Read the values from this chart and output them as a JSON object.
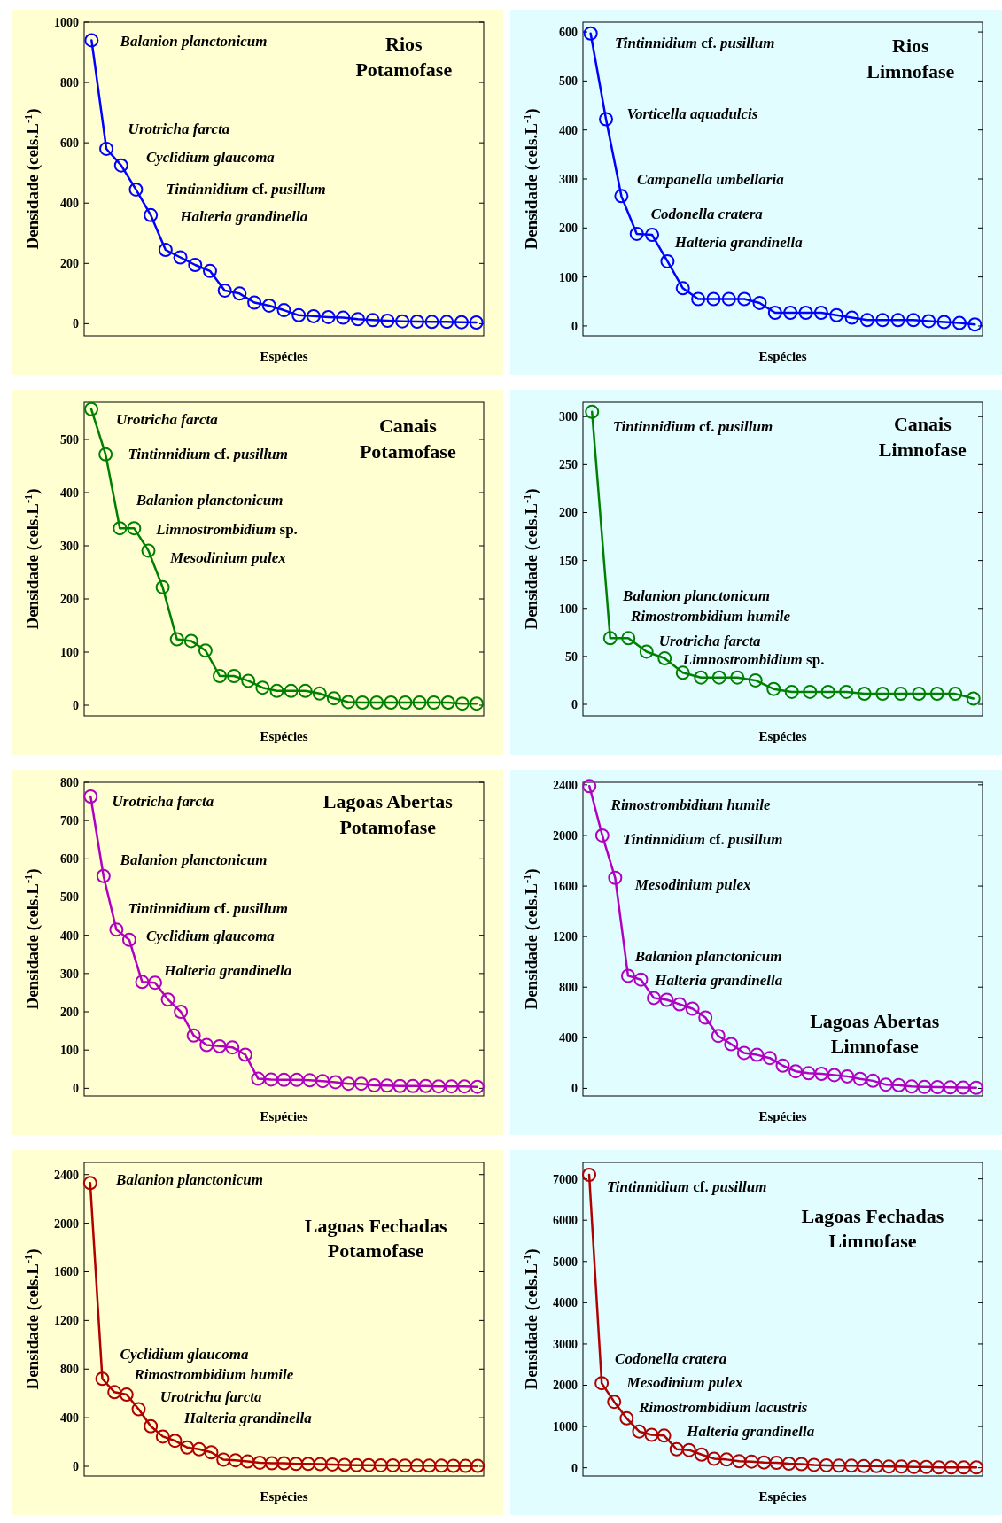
{
  "chart_data": [
    {
      "type": "line",
      "title": "Rios Potamofase",
      "xlabel": "Espécies",
      "ylabel": "Densidade (cels.L$^{-1}$)",
      "marker": "circle",
      "line_style": "solid",
      "ylim": [
        -40,
        1000
      ],
      "yticks": [
        0,
        200,
        400,
        600,
        800,
        1000
      ],
      "categories": [
        null,
        null,
        null,
        null,
        null,
        null,
        null,
        null,
        null,
        null,
        null,
        null,
        null,
        null,
        null,
        null,
        null,
        null,
        null,
        null,
        null,
        null,
        null,
        null,
        null,
        null,
        null
      ],
      "series": [
        {
          "color": "#0000ff",
          "values": [
            940,
            580,
            525,
            445,
            360,
            245,
            220,
            195,
            175,
            110,
            100,
            70,
            60,
            45,
            28,
            25,
            22,
            20,
            15,
            12,
            10,
            8,
            7,
            6,
            6,
            5,
            4
          ]
        }
      ],
      "annotations": [
        "Balanion planctonicum",
        "Urotricha farcta",
        "Cyclidium glaucoma",
        "Tintinnidium cf. pusillum",
        "Halteria grandinella"
      ]
    },
    {
      "type": "line",
      "title": "Rios Limnofase",
      "xlabel": "Espécies",
      "ylabel": "Densidade (cels.L$^{-1}$)",
      "marker": "circle",
      "line_style": "solid",
      "ylim": [
        -20,
        620
      ],
      "yticks": [
        0,
        100,
        200,
        300,
        400,
        500,
        600
      ],
      "categories": [
        null,
        null,
        null,
        null,
        null,
        null,
        null,
        null,
        null,
        null,
        null,
        null,
        null,
        null,
        null,
        null,
        null,
        null,
        null,
        null,
        null,
        null,
        null,
        null,
        null,
        null
      ],
      "series": [
        {
          "color": "#0000ff",
          "values": [
            597,
            422,
            265,
            188,
            186,
            132,
            77,
            55,
            55,
            55,
            55,
            47,
            27,
            27,
            27,
            27,
            22,
            17,
            12,
            12,
            12,
            12,
            10,
            8,
            6,
            3
          ]
        }
      ],
      "annotations": [
        "Tintinnidium cf. pusillum",
        "Vorticella aquadulcis",
        "Campanella umbellaria",
        "Codonella cratera",
        "Halteria grandinella"
      ]
    },
    {
      "type": "line",
      "title": "Canais Potamofase",
      "xlabel": "Espécies",
      "ylabel": "Densidade (cels.L$^{-1}$)",
      "marker": "circle",
      "line_style": "solid",
      "ylim": [
        -20,
        570
      ],
      "yticks": [
        0,
        100,
        200,
        300,
        400,
        500
      ],
      "categories": [
        null,
        null,
        null,
        null,
        null,
        null,
        null,
        null,
        null,
        null,
        null,
        null,
        null,
        null,
        null,
        null,
        null,
        null,
        null,
        null,
        null,
        null,
        null,
        null,
        null,
        null,
        null,
        null
      ],
      "series": [
        {
          "color": "#008000",
          "values": [
            557,
            472,
            333,
            333,
            291,
            222,
            124,
            121,
            103,
            55,
            55,
            46,
            33,
            27,
            27,
            27,
            22,
            13,
            6,
            5,
            5,
            5,
            5,
            5,
            5,
            5,
            3,
            3
          ]
        }
      ],
      "annotations": [
        "Urotricha farcta",
        "Tintinnidium cf. pusillum",
        "Balanion planctonicum",
        "Limnostrombidium sp.",
        "Mesodinium pulex"
      ]
    },
    {
      "type": "line",
      "title": "Canais Limnofase",
      "xlabel": "Espécies",
      "ylabel": "Densidade (cels.L$^{-1}$)",
      "marker": "circle",
      "line_style": "solid",
      "ylim": [
        -12,
        315
      ],
      "yticks": [
        0,
        50,
        100,
        150,
        200,
        250,
        300
      ],
      "categories": [
        null,
        null,
        null,
        null,
        null,
        null,
        null,
        null,
        null,
        null,
        null,
        null,
        null,
        null,
        null,
        null,
        null,
        null,
        null,
        null,
        null,
        null
      ],
      "series": [
        {
          "color": "#008000",
          "values": [
            305,
            69,
            69,
            55,
            48,
            33,
            28,
            28,
            28,
            25,
            16,
            13,
            13,
            13,
            13,
            11,
            11,
            11,
            11,
            11,
            11,
            6
          ]
        }
      ],
      "annotations": [
        "Tintinnidium cf. pusillum",
        "Balanion planctonicum",
        "Rimostrombidium humile",
        "Urotricha farcta",
        "Limnostrombidium sp."
      ]
    },
    {
      "type": "line",
      "title": "Lagoas Abertas Potamofase",
      "xlabel": "Espécies",
      "ylabel": "Densidade (cels.L$^{-1}$)",
      "marker": "circle",
      "line_style": "solid",
      "ylim": [
        -20,
        800
      ],
      "yticks": [
        0,
        100,
        200,
        300,
        400,
        500,
        600,
        700,
        800
      ],
      "categories": [
        null,
        null,
        null,
        null,
        null,
        null,
        null,
        null,
        null,
        null,
        null,
        null,
        null,
        null,
        null,
        null,
        null,
        null,
        null,
        null,
        null,
        null,
        null,
        null,
        null,
        null,
        null,
        null,
        null,
        null,
        null
      ],
      "series": [
        {
          "color": "#b000c0",
          "values": [
            763,
            555,
            415,
            388,
            278,
            276,
            232,
            200,
            138,
            113,
            110,
            107,
            88,
            25,
            23,
            22,
            22,
            21,
            19,
            16,
            12,
            12,
            8,
            7,
            6,
            6,
            6,
            5,
            5,
            5,
            4
          ]
        }
      ],
      "annotations": [
        "Urotricha farcta",
        "Balanion planctonicum",
        "Tintinnidium cf. pusillum",
        "Cyclidium glaucoma",
        "Halteria grandinella"
      ]
    },
    {
      "type": "line",
      "title": "Lagoas Abertas Limnofase",
      "xlabel": "Espécies",
      "ylabel": "Densidade (cels.L$^{-1}$)",
      "marker": "circle",
      "line_style": "solid",
      "ylim": [
        -60,
        2420
      ],
      "yticks": [
        0,
        400,
        800,
        1200,
        1600,
        2000,
        2400
      ],
      "categories": [
        null,
        null,
        null,
        null,
        null,
        null,
        null,
        null,
        null,
        null,
        null,
        null,
        null,
        null,
        null,
        null,
        null,
        null,
        null,
        null,
        null,
        null,
        null,
        null,
        null,
        null,
        null,
        null,
        null,
        null,
        null
      ],
      "series": [
        {
          "color": "#b000c0",
          "values": [
            2390,
            2000,
            1665,
            890,
            860,
            715,
            700,
            665,
            630,
            560,
            415,
            350,
            280,
            265,
            240,
            180,
            135,
            120,
            115,
            105,
            95,
            75,
            60,
            30,
            25,
            15,
            12,
            10,
            8,
            6,
            5
          ]
        }
      ],
      "annotations": [
        "Rimostrombidium humile",
        "Tintinnidium cf. pusillum",
        "Mesodinium pulex",
        "Balanion planctonicum",
        "Halteria grandinella"
      ]
    },
    {
      "type": "line",
      "title": "Lagoas Fechadas Potamofase",
      "xlabel": "Espécies",
      "ylabel": "Densidade (cels.L$^{-1}$)",
      "marker": "circle",
      "line_style": "solid",
      "ylim": [
        -80,
        2500
      ],
      "yticks": [
        0,
        400,
        800,
        1200,
        1600,
        2000,
        2400
      ],
      "categories": [
        null,
        null,
        null,
        null,
        null,
        null,
        null,
        null,
        null,
        null,
        null,
        null,
        null,
        null,
        null,
        null,
        null,
        null,
        null,
        null,
        null,
        null,
        null,
        null,
        null,
        null,
        null,
        null,
        null,
        null,
        null,
        null,
        null
      ],
      "series": [
        {
          "color": "#b00000",
          "values": [
            2330,
            720,
            610,
            590,
            470,
            330,
            245,
            210,
            155,
            140,
            115,
            55,
            50,
            40,
            30,
            25,
            25,
            20,
            20,
            18,
            15,
            12,
            10,
            10,
            8,
            8,
            6,
            5,
            5,
            5,
            4,
            3,
            3
          ]
        }
      ],
      "annotations": [
        "Balanion planctonicum",
        "Cyclidium glaucoma",
        "Rimostrombidium humile",
        "Urotricha farcta",
        "Halteria grandinella"
      ]
    },
    {
      "type": "line",
      "title": "Lagoas Fechadas Limnofase",
      "xlabel": "Espécies",
      "ylabel": "Densidade (cels.L$^{-1}$)",
      "marker": "circle",
      "line_style": "solid",
      "ylim": [
        -200,
        7400
      ],
      "yticks": [
        0,
        1000,
        2000,
        3000,
        4000,
        5000,
        6000,
        7000
      ],
      "categories": [
        null,
        null,
        null,
        null,
        null,
        null,
        null,
        null,
        null,
        null,
        null,
        null,
        null,
        null,
        null,
        null,
        null,
        null,
        null,
        null,
        null,
        null,
        null,
        null,
        null,
        null,
        null,
        null,
        null,
        null,
        null,
        null
      ],
      "series": [
        {
          "color": "#b00000",
          "values": [
            7100,
            2050,
            1600,
            1200,
            880,
            800,
            780,
            450,
            430,
            320,
            220,
            200,
            160,
            150,
            130,
            120,
            100,
            90,
            70,
            60,
            50,
            50,
            40,
            40,
            30,
            30,
            20,
            20,
            10,
            10,
            10,
            10
          ]
        }
      ],
      "annotations": [
        "Tintinnidium cf. pusillum",
        "Codonella cratera",
        "Mesodinium pulex",
        "Rimostrombidium lacustris",
        "Halteria grandinella"
      ]
    }
  ]
}
